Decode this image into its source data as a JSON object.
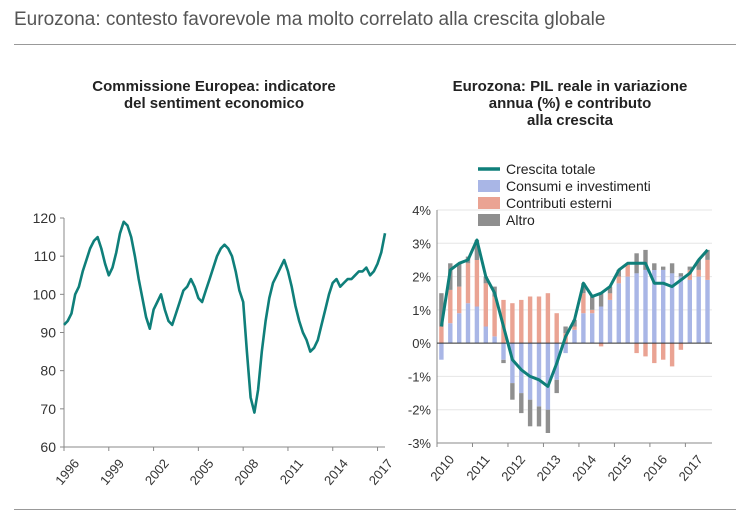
{
  "page_title": "Eurozona: contesto favorevole ma molto correlato alla crescita globale",
  "colors": {
    "line": "#0f7f7a",
    "consumi": "#a9b6e6",
    "esterni": "#eaa393",
    "altro": "#8f8f8f",
    "axis": "#888888",
    "grid": "#e6e6e6"
  },
  "chart_data": [
    {
      "type": "line",
      "title_line1": "Commissione Europea: indicatore",
      "title_line2": "del sentiment economico",
      "ylim": [
        60,
        120
      ],
      "yticks": [
        60,
        70,
        80,
        90,
        100,
        110,
        120
      ],
      "xlim": [
        1996.0,
        2017.5
      ],
      "xtick_labels": [
        "1996",
        "1999",
        "2002",
        "2005",
        "2008",
        "2011",
        "2014",
        "2017"
      ],
      "series": [
        {
          "name": "Sentiment economico",
          "x": [
            1996.0,
            1996.25,
            1996.5,
            1996.75,
            1997.0,
            1997.25,
            1997.5,
            1997.75,
            1998.0,
            1998.25,
            1998.5,
            1998.75,
            1999.0,
            1999.25,
            1999.5,
            1999.75,
            2000.0,
            2000.25,
            2000.5,
            2000.75,
            2001.0,
            2001.25,
            2001.5,
            2001.75,
            2002.0,
            2002.25,
            2002.5,
            2002.75,
            2003.0,
            2003.25,
            2003.5,
            2003.75,
            2004.0,
            2004.25,
            2004.5,
            2004.75,
            2005.0,
            2005.25,
            2005.5,
            2005.75,
            2006.0,
            2006.25,
            2006.5,
            2006.75,
            2007.0,
            2007.25,
            2007.5,
            2007.75,
            2008.0,
            2008.25,
            2008.5,
            2008.75,
            2009.0,
            2009.25,
            2009.5,
            2009.75,
            2010.0,
            2010.25,
            2010.5,
            2010.75,
            2011.0,
            2011.25,
            2011.5,
            2011.75,
            2012.0,
            2012.25,
            2012.5,
            2012.75,
            2013.0,
            2013.25,
            2013.5,
            2013.75,
            2014.0,
            2014.25,
            2014.5,
            2014.75,
            2015.0,
            2015.25,
            2015.5,
            2015.75,
            2016.0,
            2016.25,
            2016.5,
            2016.75,
            2017.0,
            2017.25,
            2017.5
          ],
          "values": [
            92,
            93,
            95,
            100,
            102,
            106,
            109,
            112,
            114,
            115,
            112,
            108,
            105,
            107,
            111,
            116,
            119,
            118,
            115,
            110,
            104,
            99,
            94,
            91,
            96,
            98,
            100,
            96,
            93,
            92,
            95,
            98,
            101,
            102,
            104,
            102,
            99,
            98,
            101,
            104,
            107,
            110,
            112,
            113,
            112,
            110,
            106,
            101,
            98,
            85,
            73,
            69,
            75,
            85,
            93,
            99,
            103,
            105,
            107,
            109,
            106,
            102,
            97,
            93,
            90,
            88,
            85,
            86,
            88,
            92,
            96,
            100,
            103,
            104,
            102,
            103,
            104,
            104,
            105,
            106,
            106,
            107,
            105,
            106,
            108,
            111,
            116
          ]
        }
      ]
    },
    {
      "type": "bar",
      "title_line1": "Eurozona: PIL reale in variazione",
      "title_line2": "annua (%) e contributo",
      "title_line3": "alla crescita",
      "ylim": [
        -3,
        4
      ],
      "yticks": [
        -3,
        -2,
        -1,
        0,
        1,
        2,
        3,
        4
      ],
      "ytick_labels": [
        "-3%",
        "-2%",
        "-1%",
        "0%",
        "1%",
        "2%",
        "3%",
        "4%"
      ],
      "xtick_labels": [
        "2010",
        "2011",
        "2012",
        "2013",
        "2014",
        "2015",
        "2016",
        "2017"
      ],
      "categories": [
        "2010T1",
        "2010T2",
        "2010T3",
        "2010T4",
        "2011T1",
        "2011T2",
        "2011T3",
        "2011T4",
        "2012T1",
        "2012T2",
        "2012T3",
        "2012T4",
        "2013T1",
        "2013T2",
        "2013T3",
        "2013T4",
        "2014T1",
        "2014T2",
        "2014T3",
        "2014T4",
        "2015T1",
        "2015T2",
        "2015T3",
        "2015T4",
        "2016T1",
        "2016T2",
        "2016T3",
        "2016T4",
        "2017T1",
        "2017T2",
        "2017T3"
      ],
      "legend": [
        "Crescita totale",
        "Consumi e investimenti",
        "Contributi esterni",
        "Altro"
      ],
      "series": [
        {
          "name": "Crescita totale",
          "kind": "line",
          "values": [
            0.5,
            2.2,
            2.4,
            2.5,
            3.1,
            2.0,
            1.5,
            0.5,
            -0.5,
            -0.8,
            -1.0,
            -1.1,
            -1.3,
            -0.6,
            0.2,
            0.7,
            1.8,
            1.4,
            1.5,
            1.7,
            2.2,
            2.4,
            2.4,
            2.4,
            1.8,
            1.8,
            1.7,
            1.9,
            2.1,
            2.5,
            2.8
          ]
        },
        {
          "name": "Consumi e investimenti",
          "kind": "bar",
          "values": [
            -0.5,
            0.6,
            0.9,
            1.2,
            1.1,
            0.5,
            0.2,
            -0.5,
            -1.2,
            -1.5,
            -1.7,
            -1.9,
            -2.0,
            -1.1,
            -0.3,
            0.4,
            0.9,
            0.9,
            1.1,
            1.3,
            1.8,
            2.0,
            2.1,
            2.2,
            2.2,
            2.2,
            2.1,
            2.0,
            1.9,
            2.0,
            1.9
          ]
        },
        {
          "name": "Contributi esterni",
          "kind": "bar",
          "values": [
            0.5,
            1.0,
            0.8,
            1.2,
            1.4,
            1.3,
            1.2,
            1.3,
            1.2,
            1.3,
            1.4,
            1.4,
            1.5,
            0.9,
            0.3,
            0.1,
            0.6,
            0.1,
            -0.1,
            0.2,
            0.2,
            0.4,
            -0.3,
            -0.4,
            -0.6,
            -0.5,
            -0.7,
            -0.2,
            0.3,
            0.2,
            0.6
          ]
        },
        {
          "name": "Altro",
          "kind": "bar",
          "values": [
            1.0,
            0.8,
            0.7,
            0.2,
            0.6,
            0.2,
            0.3,
            -0.1,
            -0.5,
            -0.6,
            -0.8,
            -0.6,
            -0.7,
            -0.4,
            0.2,
            0.2,
            0.3,
            0.4,
            0.4,
            0.2,
            0.2,
            0.0,
            0.6,
            0.6,
            0.2,
            0.1,
            0.3,
            0.1,
            0.1,
            0.3,
            0.3
          ]
        }
      ]
    }
  ]
}
